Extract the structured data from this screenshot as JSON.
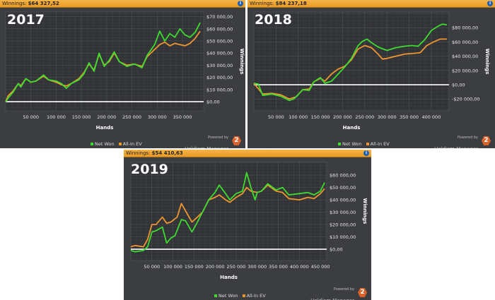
{
  "legend": {
    "net_won": "Net Won",
    "all_in_ev": "All-In EV"
  },
  "brand": {
    "powered_by": "Powered by",
    "name": "Hold'em Manager",
    "logo_number": "2"
  },
  "colors": {
    "net_won": "#3ddc2e",
    "all_in_ev": "#f0962e",
    "header": "#f0a030",
    "zero_line": "#ffffff"
  },
  "panels": [
    {
      "header_label": "Winnings:",
      "header_value": "$64 327,52",
      "year": "2017"
    },
    {
      "header_label": "Winnings:",
      "header_value": "$84 237,18",
      "year": "2018"
    },
    {
      "header_label": "Winnings:",
      "header_value": "$54 410,63",
      "year": "2019"
    }
  ],
  "chart_data": [
    {
      "type": "line",
      "title": "2017",
      "xlabel": "Hands",
      "ylabel": "Winnings",
      "xlim": [
        0,
        392000
      ],
      "ylim": [
        -7500,
        73800
      ],
      "grid": true,
      "legend": "bottom",
      "xticks": [
        50000,
        100000,
        150000,
        200000,
        250000,
        300000,
        350000
      ],
      "xtick_labels": [
        "50 000",
        "100 000",
        "150 000",
        "200 000",
        "250 000",
        "300 000",
        "350 000"
      ],
      "yticks": [
        0,
        10000,
        20000,
        30000,
        40000,
        50000,
        60000,
        70000
      ],
      "ytick_labels": [
        "$0,00",
        "$10 000,00",
        "$20 000,00",
        "$30 000,00",
        "$40 000,00",
        "$50 000,00",
        "$60 000,00",
        "$70 000,00"
      ],
      "series": [
        {
          "name": "All-In EV",
          "points": [
            [
              0,
              0
            ],
            [
              5000,
              5000
            ],
            [
              15000,
              9000
            ],
            [
              25000,
              15000
            ],
            [
              30000,
              13000
            ],
            [
              40000,
              19000
            ],
            [
              50000,
              16000
            ],
            [
              60000,
              17000
            ],
            [
              75000,
              21000
            ],
            [
              85000,
              18000
            ],
            [
              100000,
              16000
            ],
            [
              110000,
              14000
            ],
            [
              120000,
              13000
            ],
            [
              130000,
              15000
            ],
            [
              145000,
              19000
            ],
            [
              155000,
              24000
            ],
            [
              165000,
              31000
            ],
            [
              175000,
              26000
            ],
            [
              185000,
              39000
            ],
            [
              195000,
              30000
            ],
            [
              205000,
              33000
            ],
            [
              215000,
              40000
            ],
            [
              225000,
              33000
            ],
            [
              240000,
              30000
            ],
            [
              255000,
              31000
            ],
            [
              270000,
              29000
            ],
            [
              280000,
              37000
            ],
            [
              295000,
              43000
            ],
            [
              305000,
              47000
            ],
            [
              315000,
              49000
            ],
            [
              325000,
              46000
            ],
            [
              335000,
              48000
            ],
            [
              345000,
              47000
            ],
            [
              355000,
              46000
            ],
            [
              365000,
              48000
            ],
            [
              375000,
              52000
            ],
            [
              385000,
              58000
            ]
          ]
        },
        {
          "name": "Net Won",
          "points": [
            [
              0,
              0
            ],
            [
              5000,
              3000
            ],
            [
              15000,
              8000
            ],
            [
              25000,
              15000
            ],
            [
              30000,
              12000
            ],
            [
              40000,
              19000
            ],
            [
              50000,
              16000
            ],
            [
              60000,
              17000
            ],
            [
              75000,
              22000
            ],
            [
              85000,
              18000
            ],
            [
              100000,
              17000
            ],
            [
              110000,
              15000
            ],
            [
              120000,
              11000
            ],
            [
              130000,
              15000
            ],
            [
              145000,
              18000
            ],
            [
              155000,
              23000
            ],
            [
              165000,
              32000
            ],
            [
              175000,
              25000
            ],
            [
              185000,
              40000
            ],
            [
              195000,
              29000
            ],
            [
              205000,
              34000
            ],
            [
              215000,
              41000
            ],
            [
              225000,
              33000
            ],
            [
              240000,
              29000
            ],
            [
              255000,
              31000
            ],
            [
              270000,
              28000
            ],
            [
              280000,
              38000
            ],
            [
              295000,
              47000
            ],
            [
              305000,
              58000
            ],
            [
              315000,
              50000
            ],
            [
              325000,
              56000
            ],
            [
              335000,
              53000
            ],
            [
              345000,
              60000
            ],
            [
              355000,
              55000
            ],
            [
              365000,
              53000
            ],
            [
              375000,
              57000
            ],
            [
              385000,
              65000
            ]
          ]
        }
      ]
    },
    {
      "type": "line",
      "title": "2018",
      "xlabel": "Hands",
      "ylabel": "Winnings",
      "xlim": [
        0,
        440000
      ],
      "ylim": [
        -36600,
        102000
      ],
      "grid": true,
      "legend": "bottom",
      "xticks": [
        50000,
        100000,
        150000,
        200000,
        250000,
        300000,
        350000,
        400000
      ],
      "xtick_labels": [
        "50 000",
        "100 000",
        "150 000",
        "200 000",
        "250 000",
        "300 000",
        "350 000",
        "400 000"
      ],
      "yticks": [
        -20000,
        0,
        20000,
        40000,
        60000,
        80000
      ],
      "ytick_labels": [
        "-$20 000,00",
        "$0,00",
        "$20 000,00",
        "$40 000,00",
        "$60 000,00",
        "$80 000,00"
      ],
      "series": [
        {
          "name": "All-In EV",
          "points": [
            [
              0,
              2000
            ],
            [
              20000,
              -13000
            ],
            [
              40000,
              -12000
            ],
            [
              60000,
              -14000
            ],
            [
              80000,
              -20000
            ],
            [
              95000,
              -17000
            ],
            [
              110000,
              -7000
            ],
            [
              125000,
              -6000
            ],
            [
              135000,
              4000
            ],
            [
              150000,
              9000
            ],
            [
              160000,
              5000
            ],
            [
              175000,
              15000
            ],
            [
              190000,
              22000
            ],
            [
              205000,
              26000
            ],
            [
              220000,
              35000
            ],
            [
              235000,
              50000
            ],
            [
              250000,
              55000
            ],
            [
              265000,
              52000
            ],
            [
              280000,
              43000
            ],
            [
              290000,
              36000
            ],
            [
              300000,
              37000
            ],
            [
              320000,
              40000
            ],
            [
              340000,
              43000
            ],
            [
              360000,
              44000
            ],
            [
              375000,
              45000
            ],
            [
              390000,
              55000
            ],
            [
              405000,
              60000
            ],
            [
              420000,
              64000
            ],
            [
              435000,
              64000
            ]
          ]
        },
        {
          "name": "Net Won",
          "points": [
            [
              0,
              2000
            ],
            [
              10000,
              1000
            ],
            [
              20000,
              -15000
            ],
            [
              40000,
              -13000
            ],
            [
              60000,
              -16000
            ],
            [
              80000,
              -22000
            ],
            [
              90000,
              -20000
            ],
            [
              100000,
              -14000
            ],
            [
              110000,
              -7000
            ],
            [
              125000,
              -8000
            ],
            [
              135000,
              4000
            ],
            [
              150000,
              10000
            ],
            [
              160000,
              2000
            ],
            [
              175000,
              5000
            ],
            [
              190000,
              15000
            ],
            [
              205000,
              25000
            ],
            [
              220000,
              37000
            ],
            [
              235000,
              55000
            ],
            [
              245000,
              61000
            ],
            [
              255000,
              64000
            ],
            [
              265000,
              59000
            ],
            [
              280000,
              53000
            ],
            [
              300000,
              48000
            ],
            [
              320000,
              52000
            ],
            [
              340000,
              54000
            ],
            [
              355000,
              55000
            ],
            [
              370000,
              54000
            ],
            [
              385000,
              63000
            ],
            [
              400000,
              76000
            ],
            [
              415000,
              82000
            ],
            [
              425000,
              85000
            ],
            [
              435000,
              84000
            ]
          ]
        }
      ]
    },
    {
      "type": "line",
      "title": "2019",
      "xlabel": "Hands",
      "ylabel": "Winnings",
      "xlim": [
        0,
        465000
      ],
      "ylim": [
        -9100,
        70900
      ],
      "grid": true,
      "legend": "bottom",
      "xticks": [
        50000,
        100000,
        150000,
        200000,
        250000,
        300000,
        350000,
        400000,
        450000
      ],
      "xtick_labels": [
        "50 000",
        "100 000",
        "150 000",
        "200 000",
        "250 000",
        "300 000",
        "350 000",
        "400 000",
        "450 000"
      ],
      "yticks": [
        0,
        10000,
        20000,
        30000,
        40000,
        50000,
        60000
      ],
      "ytick_labels": [
        "$0,00",
        "$10 000,00",
        "$20 000,00",
        "$30 000,00",
        "$40 000,00",
        "$50 000,00",
        "$60 000,00"
      ],
      "series": [
        {
          "name": "All-In EV",
          "points": [
            [
              0,
              2000
            ],
            [
              10000,
              3000
            ],
            [
              30000,
              2000
            ],
            [
              40000,
              8000
            ],
            [
              50000,
              20000
            ],
            [
              60000,
              20000
            ],
            [
              75000,
              26000
            ],
            [
              85000,
              21000
            ],
            [
              95000,
              22000
            ],
            [
              110000,
              26000
            ],
            [
              120000,
              37000
            ],
            [
              135000,
              28000
            ],
            [
              145000,
              22000
            ],
            [
              155000,
              25000
            ],
            [
              170000,
              30000
            ],
            [
              185000,
              40000
            ],
            [
              200000,
              42000
            ],
            [
              210000,
              44000
            ],
            [
              225000,
              40000
            ],
            [
              235000,
              38000
            ],
            [
              250000,
              42000
            ],
            [
              265000,
              45000
            ],
            [
              275000,
              50000
            ],
            [
              285000,
              47000
            ],
            [
              300000,
              46000
            ],
            [
              310000,
              47000
            ],
            [
              325000,
              52000
            ],
            [
              345000,
              47000
            ],
            [
              360000,
              46000
            ],
            [
              375000,
              41000
            ],
            [
              400000,
              40000
            ],
            [
              420000,
              42000
            ],
            [
              435000,
              41000
            ],
            [
              450000,
              45000
            ],
            [
              460000,
              49000
            ]
          ]
        },
        {
          "name": "Net Won",
          "points": [
            [
              0,
              -1000
            ],
            [
              10000,
              -2000
            ],
            [
              30000,
              -1000
            ],
            [
              40000,
              2000
            ],
            [
              50000,
              14000
            ],
            [
              60000,
              15000
            ],
            [
              75000,
              18000
            ],
            [
              85000,
              5000
            ],
            [
              95000,
              9000
            ],
            [
              105000,
              11000
            ],
            [
              120000,
              24000
            ],
            [
              130000,
              23000
            ],
            [
              145000,
              14000
            ],
            [
              155000,
              20000
            ],
            [
              170000,
              30000
            ],
            [
              185000,
              40000
            ],
            [
              200000,
              46000
            ],
            [
              210000,
              52000
            ],
            [
              225000,
              45000
            ],
            [
              235000,
              40000
            ],
            [
              250000,
              45000
            ],
            [
              265000,
              47000
            ],
            [
              275000,
              62000
            ],
            [
              285000,
              50000
            ],
            [
              295000,
              40000
            ],
            [
              300000,
              46000
            ],
            [
              310000,
              47000
            ],
            [
              325000,
              53000
            ],
            [
              345000,
              48000
            ],
            [
              360000,
              50000
            ],
            [
              375000,
              44000
            ],
            [
              400000,
              45000
            ],
            [
              420000,
              46000
            ],
            [
              435000,
              44000
            ],
            [
              450000,
              47000
            ],
            [
              460000,
              54000
            ]
          ]
        }
      ]
    }
  ]
}
